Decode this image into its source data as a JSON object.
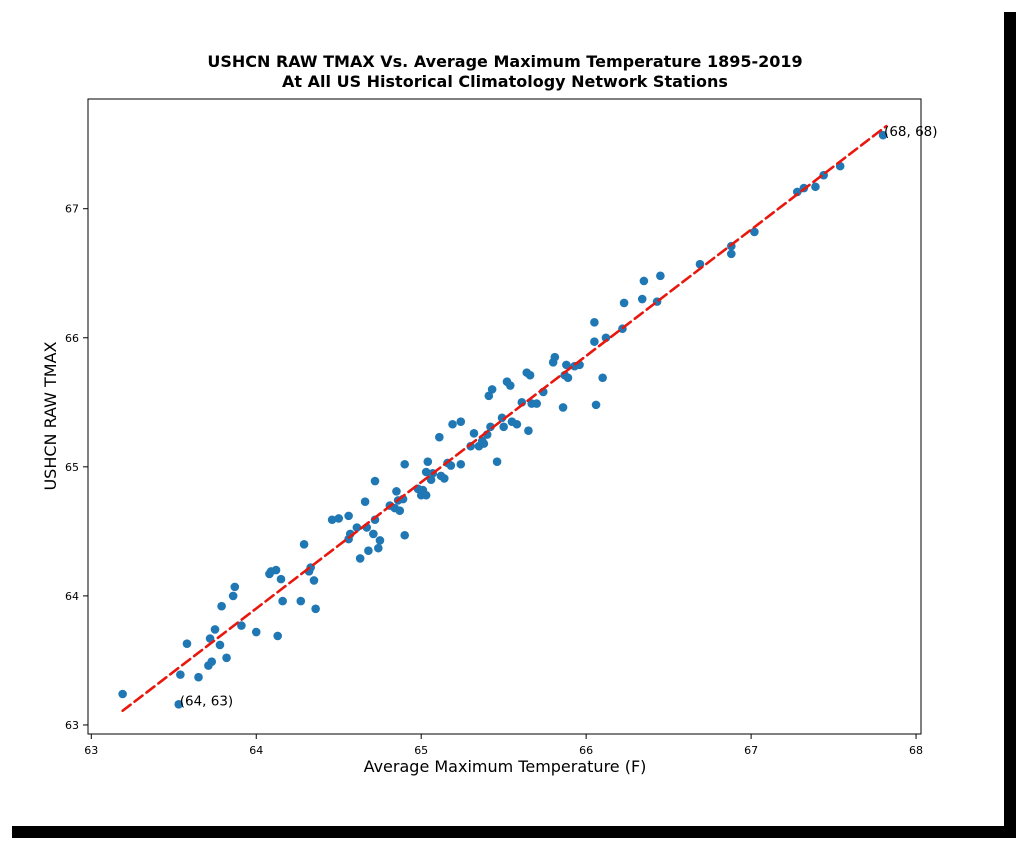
{
  "chart_data": {
    "type": "scatter",
    "title_line1": "USHCN RAW TMAX Vs. Average Maximum Temperature 1895-2019",
    "title_line2": "At All US Historical Climatology Network Stations",
    "xlabel": "Average Maximum Temperature (F)",
    "ylabel": "USHCN RAW TMAX",
    "xlim": [
      62.98,
      68.03
    ],
    "ylim": [
      62.93,
      67.85
    ],
    "xticks": [
      "63",
      "64",
      "65",
      "66",
      "67",
      "68"
    ],
    "yticks": [
      "63",
      "64",
      "65",
      "66",
      "67"
    ],
    "grid": false,
    "point_color": "#1f77b4",
    "line_color": "#e8180f",
    "fit_line": {
      "x": [
        63.19,
        67.82
      ],
      "y": [
        63.11,
        67.64
      ],
      "style": "dashed"
    },
    "points": [
      [
        63.19,
        63.24
      ],
      [
        63.53,
        63.16
      ],
      [
        63.54,
        63.39
      ],
      [
        63.58,
        63.63
      ],
      [
        63.65,
        63.37
      ],
      [
        63.71,
        63.46
      ],
      [
        63.72,
        63.67
      ],
      [
        63.73,
        63.49
      ],
      [
        63.75,
        63.74
      ],
      [
        63.78,
        63.62
      ],
      [
        63.79,
        63.92
      ],
      [
        63.82,
        63.52
      ],
      [
        63.86,
        64.0
      ],
      [
        63.87,
        64.07
      ],
      [
        63.91,
        63.77
      ],
      [
        64.0,
        63.72
      ],
      [
        64.08,
        64.17
      ],
      [
        64.09,
        64.19
      ],
      [
        64.12,
        64.2
      ],
      [
        64.13,
        63.69
      ],
      [
        64.15,
        64.13
      ],
      [
        64.16,
        63.96
      ],
      [
        64.27,
        63.96
      ],
      [
        64.29,
        64.4
      ],
      [
        64.32,
        64.19
      ],
      [
        64.33,
        64.22
      ],
      [
        64.35,
        64.12
      ],
      [
        64.36,
        63.9
      ],
      [
        64.46,
        64.59
      ],
      [
        64.5,
        64.6
      ],
      [
        64.56,
        64.62
      ],
      [
        64.56,
        64.44
      ],
      [
        64.57,
        64.48
      ],
      [
        64.61,
        64.53
      ],
      [
        64.63,
        64.29
      ],
      [
        64.66,
        64.73
      ],
      [
        64.67,
        64.53
      ],
      [
        64.68,
        64.35
      ],
      [
        64.71,
        64.48
      ],
      [
        64.72,
        64.89
      ],
      [
        64.72,
        64.59
      ],
      [
        64.74,
        64.37
      ],
      [
        64.75,
        64.43
      ],
      [
        64.81,
        64.7
      ],
      [
        64.84,
        64.68
      ],
      [
        64.85,
        64.81
      ],
      [
        64.86,
        64.74
      ],
      [
        64.87,
        64.66
      ],
      [
        64.89,
        64.75
      ],
      [
        64.9,
        64.47
      ],
      [
        64.9,
        65.02
      ],
      [
        64.98,
        64.83
      ],
      [
        65.0,
        64.78
      ],
      [
        65.01,
        64.82
      ],
      [
        65.03,
        64.78
      ],
      [
        65.03,
        64.96
      ],
      [
        65.04,
        65.04
      ],
      [
        65.06,
        64.9
      ],
      [
        65.07,
        64.95
      ],
      [
        65.11,
        65.23
      ],
      [
        65.12,
        64.93
      ],
      [
        65.14,
        64.91
      ],
      [
        65.16,
        65.03
      ],
      [
        65.18,
        65.01
      ],
      [
        65.19,
        65.33
      ],
      [
        65.24,
        65.35
      ],
      [
        65.24,
        65.02
      ],
      [
        65.3,
        65.16
      ],
      [
        65.32,
        65.26
      ],
      [
        65.35,
        65.16
      ],
      [
        65.37,
        65.2
      ],
      [
        65.38,
        65.18
      ],
      [
        65.4,
        65.25
      ],
      [
        65.41,
        65.55
      ],
      [
        65.42,
        65.31
      ],
      [
        65.43,
        65.6
      ],
      [
        65.46,
        65.04
      ],
      [
        65.49,
        65.38
      ],
      [
        65.5,
        65.31
      ],
      [
        65.52,
        65.66
      ],
      [
        65.54,
        65.63
      ],
      [
        65.55,
        65.35
      ],
      [
        65.58,
        65.33
      ],
      [
        65.61,
        65.5
      ],
      [
        65.64,
        65.73
      ],
      [
        65.65,
        65.28
      ],
      [
        65.66,
        65.71
      ],
      [
        65.67,
        65.49
      ],
      [
        65.7,
        65.49
      ],
      [
        65.74,
        65.58
      ],
      [
        65.8,
        65.81
      ],
      [
        65.81,
        65.85
      ],
      [
        65.86,
        65.46
      ],
      [
        65.87,
        65.71
      ],
      [
        65.88,
        65.79
      ],
      [
        65.89,
        65.69
      ],
      [
        65.93,
        65.78
      ],
      [
        65.96,
        65.79
      ],
      [
        66.05,
        66.12
      ],
      [
        66.05,
        65.97
      ],
      [
        66.06,
        65.48
      ],
      [
        66.1,
        65.69
      ],
      [
        66.12,
        66.0
      ],
      [
        66.22,
        66.07
      ],
      [
        66.23,
        66.27
      ],
      [
        66.34,
        66.3
      ],
      [
        66.35,
        66.44
      ],
      [
        66.43,
        66.28
      ],
      [
        66.45,
        66.48
      ],
      [
        66.69,
        66.57
      ],
      [
        66.88,
        66.65
      ],
      [
        66.88,
        66.71
      ],
      [
        67.02,
        66.82
      ],
      [
        67.28,
        67.13
      ],
      [
        67.32,
        67.16
      ],
      [
        67.39,
        67.17
      ],
      [
        67.44,
        67.26
      ],
      [
        67.54,
        67.33
      ],
      [
        67.8,
        67.57
      ]
    ],
    "annotations": [
      {
        "text": "(64, 63)",
        "x": 63.53,
        "y": 63.16
      },
      {
        "text": "(68, 68)",
        "x": 67.8,
        "y": 67.57
      }
    ]
  }
}
